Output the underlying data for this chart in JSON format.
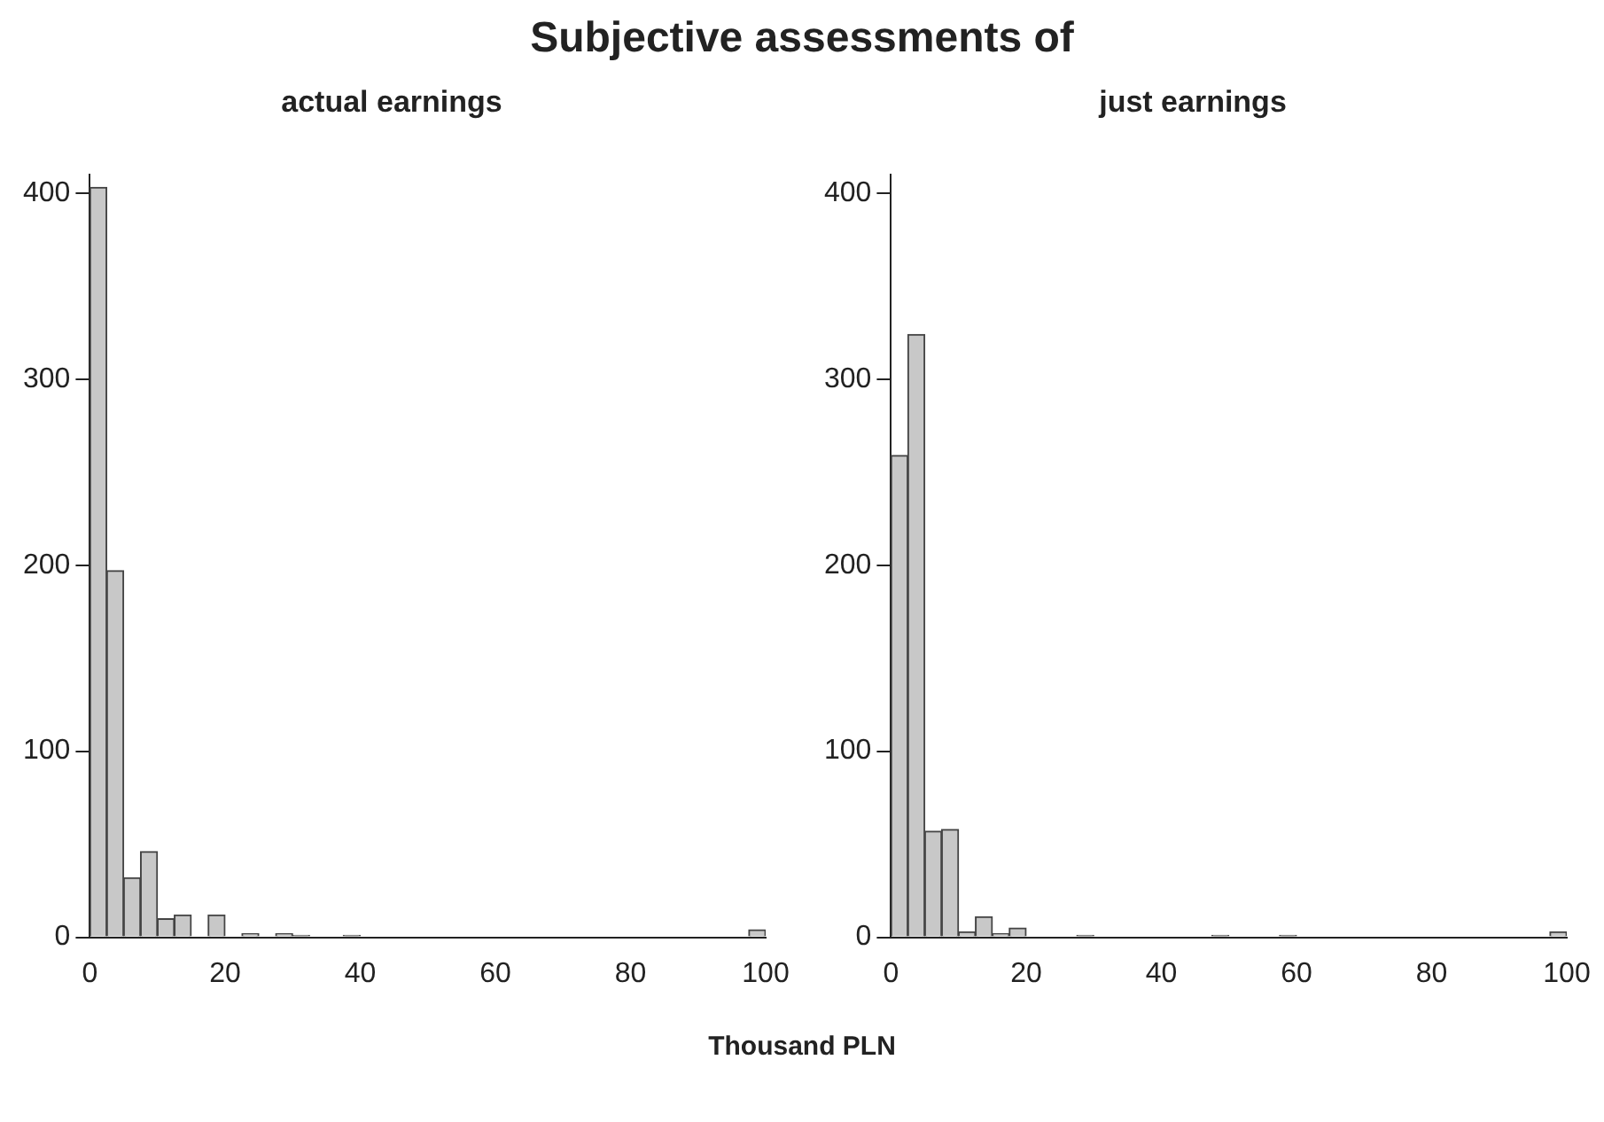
{
  "chart_data": [
    {
      "type": "histogram",
      "title": "actual earnings",
      "annotations": [
        "Subjective assessments of"
      ],
      "xlabel": "Thousand PLN",
      "bins": [
        0,
        2.5,
        5,
        7.5,
        10,
        12.5,
        15,
        17.5,
        20,
        22.5,
        25,
        27.5,
        30,
        32.5,
        35,
        37.5,
        40,
        42.5,
        45,
        47.5,
        50,
        52.5,
        55,
        57.5,
        60,
        62.5,
        65,
        67.5,
        70,
        72.5,
        75,
        77.5,
        80,
        82.5,
        85,
        87.5,
        90,
        92.5,
        95,
        97.5,
        100
      ],
      "values": [
        403,
        197,
        32,
        46,
        10,
        12,
        0,
        12,
        0,
        2,
        0,
        2,
        1,
        0,
        0,
        1,
        0,
        0,
        0,
        0,
        0,
        0,
        0,
        0,
        0,
        0,
        0,
        0,
        0,
        0,
        0,
        0,
        0,
        0,
        0,
        0,
        0,
        0,
        0,
        4
      ],
      "color": "#c8c8c8",
      "xlim": [
        0,
        100
      ],
      "xticks": [
        0,
        20,
        40,
        60,
        80,
        100
      ],
      "ylim": [
        0,
        410
      ],
      "yticks": [
        0,
        100,
        200,
        300,
        400
      ],
      "grid": false
    },
    {
      "type": "histogram",
      "title": "just earnings",
      "bins": [
        0,
        2.5,
        5,
        7.5,
        10,
        12.5,
        15,
        17.5,
        20,
        22.5,
        25,
        27.5,
        30,
        32.5,
        35,
        37.5,
        40,
        42.5,
        45,
        47.5,
        50,
        52.5,
        55,
        57.5,
        60,
        62.5,
        65,
        67.5,
        70,
        72.5,
        75,
        77.5,
        80,
        82.5,
        85,
        87.5,
        90,
        92.5,
        95,
        97.5,
        100
      ],
      "values": [
        259,
        324,
        57,
        58,
        3,
        11,
        2,
        5,
        0,
        0,
        0,
        1,
        0,
        0,
        0,
        0,
        0,
        0,
        0,
        1,
        0,
        0,
        0,
        1,
        0,
        0,
        0,
        0,
        0,
        0,
        0,
        0,
        0,
        0,
        0,
        0,
        0,
        0,
        0,
        3
      ],
      "color": "#c8c8c8",
      "xlim": [
        0,
        100
      ],
      "xticks": [
        0,
        20,
        40,
        60,
        80,
        100
      ],
      "ylim": [
        0,
        410
      ],
      "yticks": [
        0,
        100,
        200,
        300,
        400
      ],
      "grid": false
    }
  ]
}
